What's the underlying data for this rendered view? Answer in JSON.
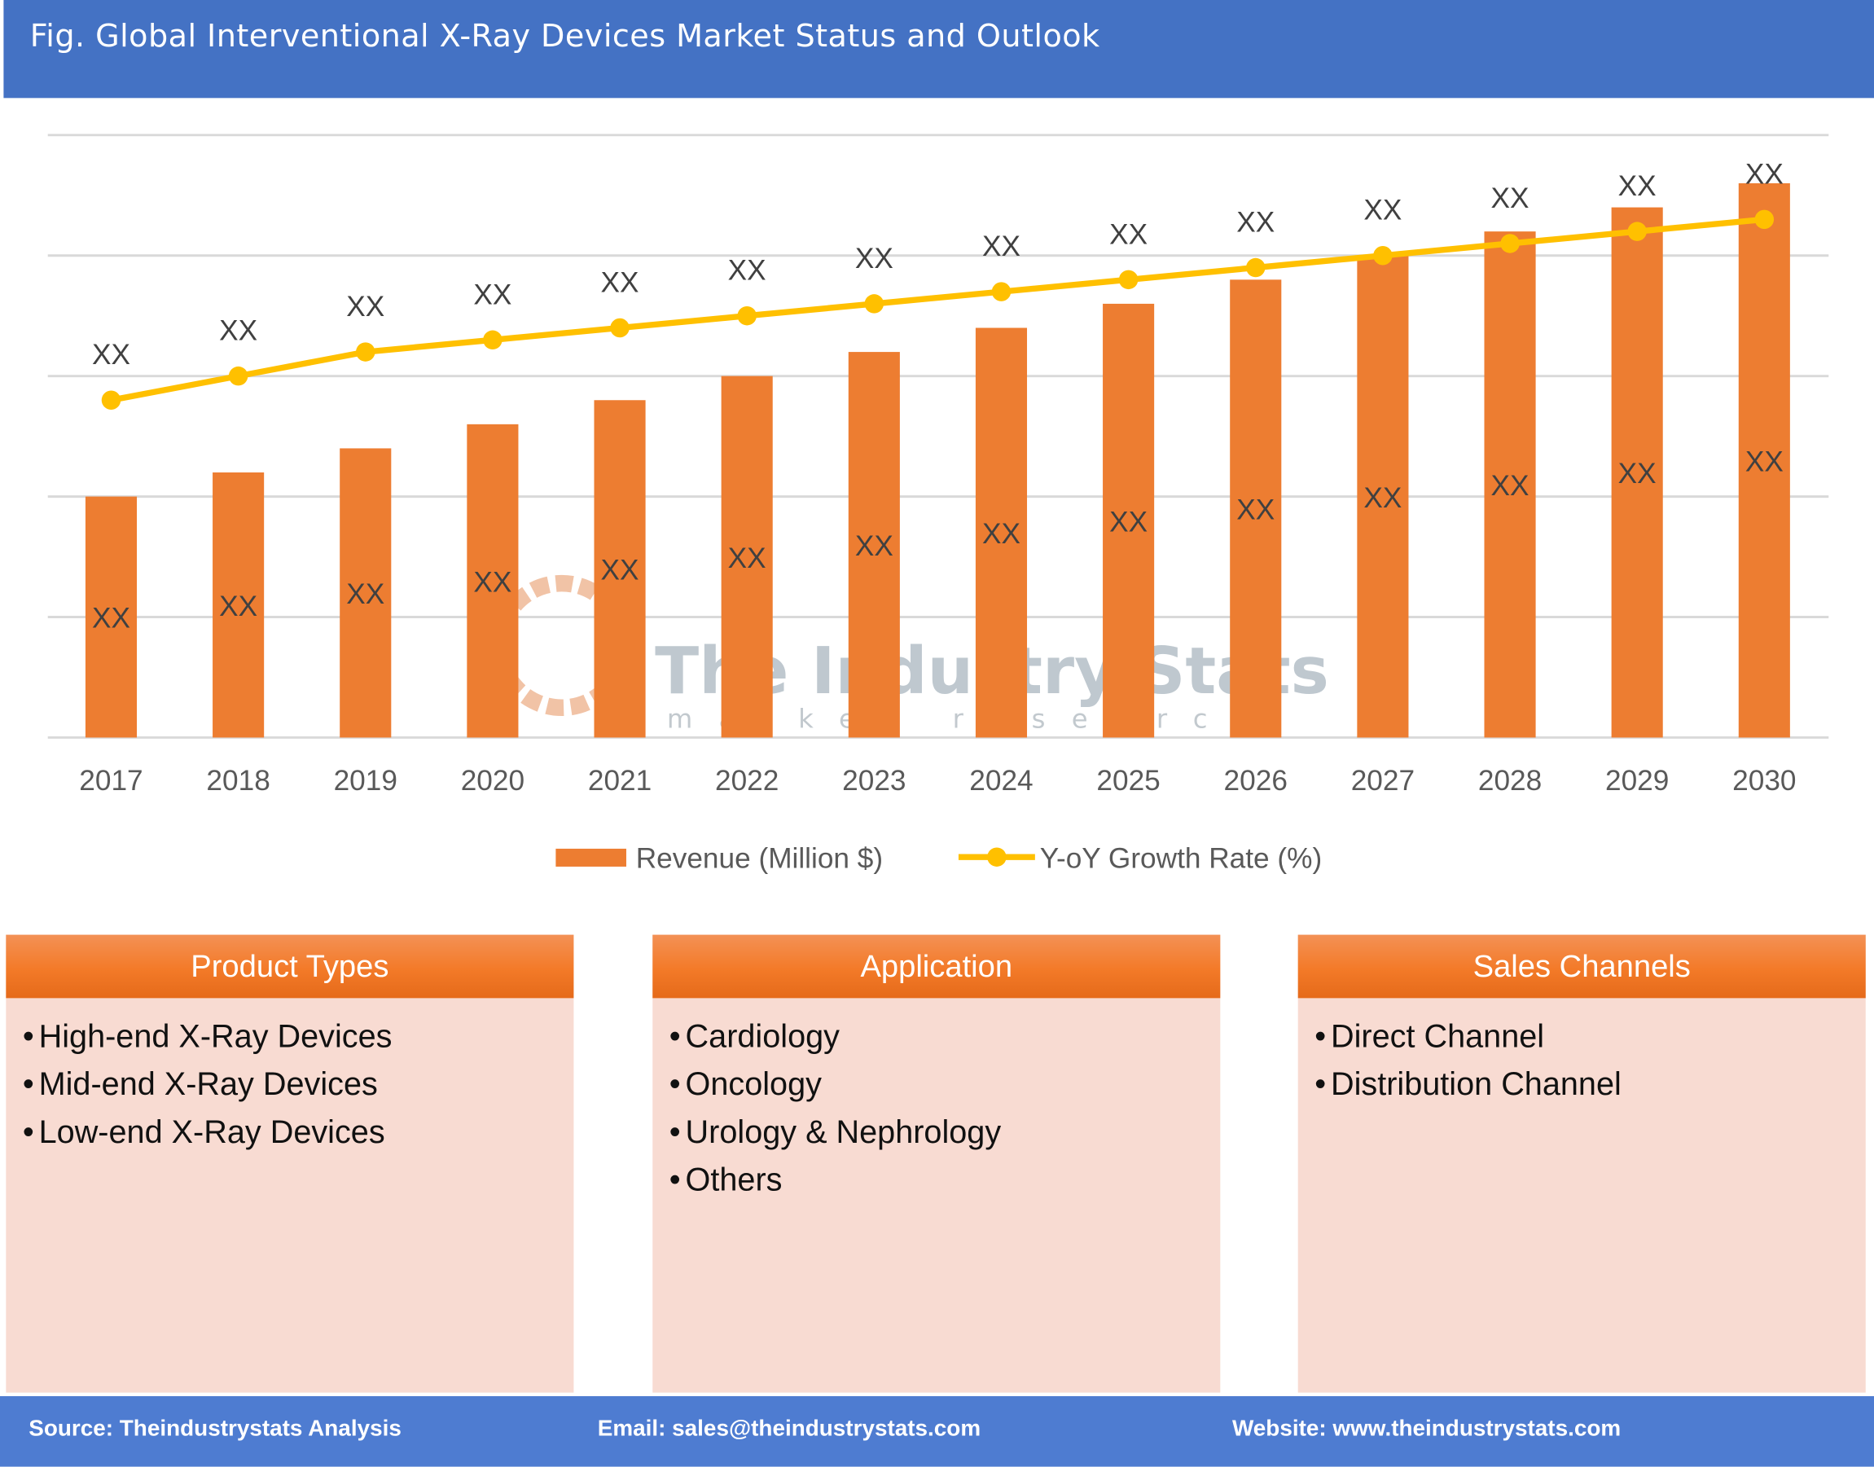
{
  "title": "Fig. Global Interventional X-Ray Devices Market Status and Outlook",
  "chart_data": {
    "type": "bar+line",
    "categories": [
      "2017",
      "2018",
      "2019",
      "2020",
      "2021",
      "2022",
      "2023",
      "2024",
      "2025",
      "2026",
      "2027",
      "2028",
      "2029",
      "2030"
    ],
    "series": [
      {
        "name": "Revenue (Million $)",
        "type": "bar",
        "color": "#ED7D31",
        "values": [
          2.0,
          2.2,
          2.4,
          2.6,
          2.8,
          3.0,
          3.2,
          3.4,
          3.6,
          3.8,
          4.0,
          4.2,
          4.4,
          4.6
        ],
        "labels": [
          "XX",
          "XX",
          "XX",
          "XX",
          "XX",
          "XX",
          "XX",
          "XX",
          "XX",
          "XX",
          "XX",
          "XX",
          "XX",
          "XX"
        ]
      },
      {
        "name": "Y-oY Growth Rate (%)",
        "type": "line",
        "color": "#FFC000",
        "values": [
          2.8,
          3.0,
          3.2,
          3.3,
          3.4,
          3.5,
          3.6,
          3.7,
          3.8,
          3.9,
          4.0,
          4.1,
          4.2,
          4.3
        ],
        "labels": [
          "XX",
          "XX",
          "XX",
          "XX",
          "XX",
          "XX",
          "XX",
          "XX",
          "XX",
          "XX",
          "XX",
          "XX",
          "XX",
          "XX"
        ]
      }
    ],
    "ylim": [
      0,
      5
    ],
    "y_axis_labels_shown": false,
    "grid": true,
    "legend": "bottom"
  },
  "watermark": {
    "name": "The Industry Stats",
    "tagline": "market research"
  },
  "panels": [
    {
      "title": "Product Types",
      "items": [
        "High-end X-Ray Devices",
        "Mid-end X-Ray Devices",
        "Low-end X-Ray Devices"
      ]
    },
    {
      "title": "Application",
      "items": [
        "Cardiology",
        "Oncology",
        "Urology & Nephrology",
        "Others"
      ]
    },
    {
      "title": "Sales Channels",
      "items": [
        "Direct Channel",
        "Distribution Channel"
      ]
    }
  ],
  "footer": {
    "source": "Source: Theindustrystats Analysis",
    "email": "Email: sales@theindustrystats.com",
    "website": "Website: www.theindustrystats.com"
  }
}
